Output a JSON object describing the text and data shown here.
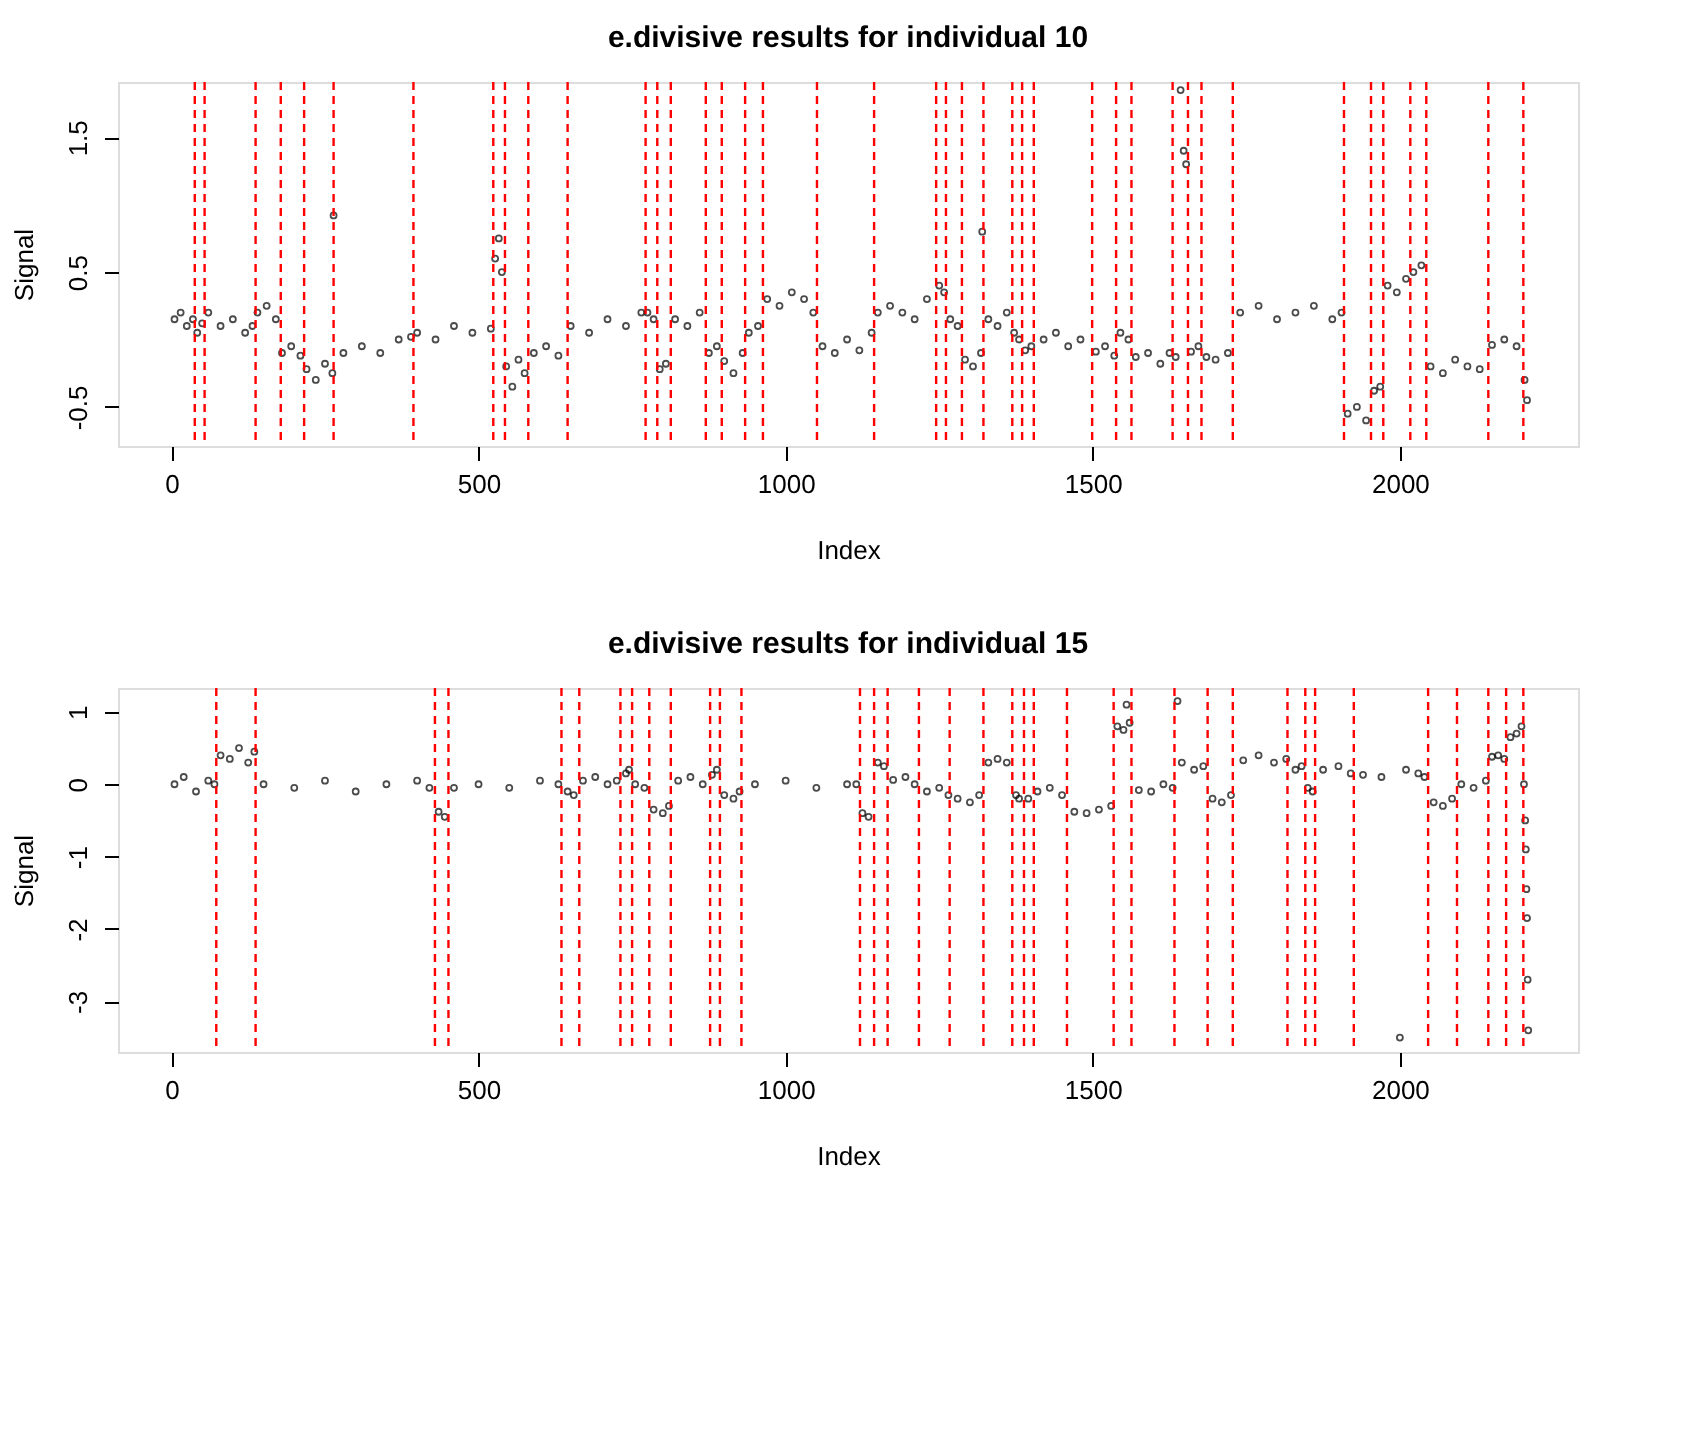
{
  "chart_data": [
    {
      "type": "scatter",
      "title": "e.divisive results for individual 10",
      "xlabel": "Index",
      "ylabel": "Signal",
      "marker": "circle",
      "grid": false,
      "xlim": [
        -87,
        2290
      ],
      "xticks": [
        0,
        500,
        1000,
        1500,
        2000
      ],
      "ylim": [
        -0.79,
        1.91
      ],
      "yticks": [
        -0.5,
        0.5,
        1.5
      ],
      "series": [
        {
          "color": "#000000",
          "x": [
            5,
            15,
            25,
            35,
            42,
            50,
            60,
            80,
            100,
            120,
            132,
            140,
            155,
            170,
            180,
            195,
            210,
            220,
            235,
            250,
            262,
            264,
            280,
            310,
            340,
            370,
            390,
            400,
            430,
            460,
            490,
            520,
            527,
            533,
            538,
            545,
            555,
            565,
            575,
            590,
            610,
            630,
            650,
            680,
            710,
            740,
            765,
            775,
            785,
            795,
            805,
            820,
            840,
            860,
            875,
            888,
            900,
            915,
            930,
            940,
            955,
            970,
            990,
            1010,
            1030,
            1045,
            1060,
            1080,
            1100,
            1120,
            1140,
            1150,
            1170,
            1190,
            1210,
            1230,
            1250,
            1258,
            1268,
            1280,
            1292,
            1305,
            1318,
            1320,
            1330,
            1345,
            1360,
            1372,
            1380,
            1390,
            1400,
            1420,
            1440,
            1460,
            1480,
            1505,
            1520,
            1535,
            1545,
            1558,
            1570,
            1590,
            1610,
            1625,
            1635,
            1643,
            1648,
            1652,
            1660,
            1672,
            1685,
            1700,
            1720,
            1740,
            1770,
            1800,
            1830,
            1860,
            1890,
            1905,
            1915,
            1930,
            1945,
            1958,
            1968,
            1980,
            1995,
            2010,
            2022,
            2035,
            2050,
            2070,
            2090,
            2110,
            2130,
            2150,
            2170,
            2190,
            2203,
            2207
          ],
          "values": [
            0.15,
            0.2,
            0.1,
            0.15,
            0.05,
            0.12,
            0.2,
            0.1,
            0.15,
            0.05,
            0.1,
            0.2,
            0.25,
            0.15,
            -0.1,
            -0.05,
            -0.12,
            -0.22,
            -0.3,
            -0.18,
            -0.25,
            0.92,
            -0.1,
            -0.05,
            -0.1,
            0.0,
            0.02,
            0.05,
            0.0,
            0.1,
            0.05,
            0.08,
            0.6,
            0.75,
            0.5,
            -0.2,
            -0.35,
            -0.15,
            -0.25,
            -0.1,
            -0.05,
            -0.12,
            0.1,
            0.05,
            0.15,
            0.1,
            0.2,
            0.2,
            0.15,
            -0.22,
            -0.18,
            0.15,
            0.1,
            0.2,
            -0.1,
            -0.05,
            -0.16,
            -0.25,
            -0.1,
            0.05,
            0.1,
            0.3,
            0.25,
            0.35,
            0.3,
            0.2,
            -0.05,
            -0.1,
            0.0,
            -0.08,
            0.05,
            0.2,
            0.25,
            0.2,
            0.15,
            0.3,
            0.4,
            0.35,
            0.15,
            0.1,
            -0.15,
            -0.2,
            -0.1,
            0.8,
            0.15,
            0.1,
            0.2,
            0.05,
            0.0,
            -0.08,
            -0.05,
            0.0,
            0.05,
            -0.05,
            0.0,
            -0.09,
            -0.05,
            -0.12,
            0.05,
            0.0,
            -0.13,
            -0.1,
            -0.18,
            -0.1,
            -0.13,
            1.85,
            1.4,
            1.3,
            -0.09,
            -0.05,
            -0.13,
            -0.15,
            -0.1,
            0.2,
            0.25,
            0.15,
            0.2,
            0.25,
            0.15,
            0.2,
            -0.55,
            -0.5,
            -0.6,
            -0.38,
            -0.35,
            0.4,
            0.35,
            0.45,
            0.5,
            0.55,
            -0.2,
            -0.25,
            -0.15,
            -0.2,
            -0.22,
            -0.04,
            0.0,
            -0.05,
            -0.3,
            -0.45
          ]
        }
      ],
      "ref_lines": [
        {
          "axis": "x",
          "value": 38,
          "color": "#ff0000",
          "line_style": "dashed"
        },
        {
          "axis": "x",
          "value": 54,
          "color": "#ff0000",
          "line_style": "dashed"
        },
        {
          "axis": "x",
          "value": 137,
          "color": "#ff0000",
          "line_style": "dashed"
        },
        {
          "axis": "x",
          "value": 178,
          "color": "#ff0000",
          "line_style": "dashed"
        },
        {
          "axis": "x",
          "value": 216,
          "color": "#ff0000",
          "line_style": "dashed"
        },
        {
          "axis": "x",
          "value": 264,
          "color": "#ff0000",
          "line_style": "dashed"
        },
        {
          "axis": "x",
          "value": 394,
          "color": "#ff0000",
          "line_style": "dashed"
        },
        {
          "axis": "x",
          "value": 524,
          "color": "#ff0000",
          "line_style": "dashed"
        },
        {
          "axis": "x",
          "value": 543,
          "color": "#ff0000",
          "line_style": "dashed"
        },
        {
          "axis": "x",
          "value": 581,
          "color": "#ff0000",
          "line_style": "dashed"
        },
        {
          "axis": "x",
          "value": 645,
          "color": "#ff0000",
          "line_style": "dashed"
        },
        {
          "axis": "x",
          "value": 772,
          "color": "#ff0000",
          "line_style": "dashed"
        },
        {
          "axis": "x",
          "value": 791,
          "color": "#ff0000",
          "line_style": "dashed"
        },
        {
          "axis": "x",
          "value": 813,
          "color": "#ff0000",
          "line_style": "dashed"
        },
        {
          "axis": "x",
          "value": 870,
          "color": "#ff0000",
          "line_style": "dashed"
        },
        {
          "axis": "x",
          "value": 896,
          "color": "#ff0000",
          "line_style": "dashed"
        },
        {
          "axis": "x",
          "value": 934,
          "color": "#ff0000",
          "line_style": "dashed"
        },
        {
          "axis": "x",
          "value": 963,
          "color": "#ff0000",
          "line_style": "dashed"
        },
        {
          "axis": "x",
          "value": 1051,
          "color": "#ff0000",
          "line_style": "dashed"
        },
        {
          "axis": "x",
          "value": 1144,
          "color": "#ff0000",
          "line_style": "dashed"
        },
        {
          "axis": "x",
          "value": 1245,
          "color": "#ff0000",
          "line_style": "dashed"
        },
        {
          "axis": "x",
          "value": 1261,
          "color": "#ff0000",
          "line_style": "dashed"
        },
        {
          "axis": "x",
          "value": 1287,
          "color": "#ff0000",
          "line_style": "dashed"
        },
        {
          "axis": "x",
          "value": 1322,
          "color": "#ff0000",
          "line_style": "dashed"
        },
        {
          "axis": "x",
          "value": 1369,
          "color": "#ff0000",
          "line_style": "dashed"
        },
        {
          "axis": "x",
          "value": 1385,
          "color": "#ff0000",
          "line_style": "dashed"
        },
        {
          "axis": "x",
          "value": 1404,
          "color": "#ff0000",
          "line_style": "dashed"
        },
        {
          "axis": "x",
          "value": 1499,
          "color": "#ff0000",
          "line_style": "dashed"
        },
        {
          "axis": "x",
          "value": 1538,
          "color": "#ff0000",
          "line_style": "dashed"
        },
        {
          "axis": "x",
          "value": 1563,
          "color": "#ff0000",
          "line_style": "dashed"
        },
        {
          "axis": "x",
          "value": 1630,
          "color": "#ff0000",
          "line_style": "dashed"
        },
        {
          "axis": "x",
          "value": 1655,
          "color": "#ff0000",
          "line_style": "dashed"
        },
        {
          "axis": "x",
          "value": 1677,
          "color": "#ff0000",
          "line_style": "dashed"
        },
        {
          "axis": "x",
          "value": 1728,
          "color": "#ff0000",
          "line_style": "dashed"
        },
        {
          "axis": "x",
          "value": 1909,
          "color": "#ff0000",
          "line_style": "dashed"
        },
        {
          "axis": "x",
          "value": 1953,
          "color": "#ff0000",
          "line_style": "dashed"
        },
        {
          "axis": "x",
          "value": 1973,
          "color": "#ff0000",
          "line_style": "dashed"
        },
        {
          "axis": "x",
          "value": 2017,
          "color": "#ff0000",
          "line_style": "dashed"
        },
        {
          "axis": "x",
          "value": 2043,
          "color": "#ff0000",
          "line_style": "dashed"
        },
        {
          "axis": "x",
          "value": 2144,
          "color": "#ff0000",
          "line_style": "dashed"
        },
        {
          "axis": "x",
          "value": 2201,
          "color": "#ff0000",
          "line_style": "dashed"
        }
      ]
    },
    {
      "type": "scatter",
      "title": "e.divisive results for individual 15",
      "xlabel": "Index",
      "ylabel": "Signal",
      "marker": "circle",
      "grid": false,
      "xlim": [
        -87,
        2290
      ],
      "xticks": [
        0,
        500,
        1000,
        1500,
        2000
      ],
      "ylim": [
        -3.7,
        1.33
      ],
      "yticks": [
        -3,
        -2,
        -1,
        0,
        1
      ],
      "series": [
        {
          "color": "#000000",
          "x": [
            5,
            20,
            40,
            60,
            70,
            80,
            95,
            110,
            125,
            135,
            150,
            200,
            250,
            300,
            350,
            400,
            420,
            435,
            445,
            460,
            500,
            550,
            600,
            630,
            645,
            655,
            670,
            690,
            710,
            725,
            740,
            745,
            755,
            770,
            785,
            800,
            810,
            825,
            845,
            865,
            880,
            888,
            900,
            915,
            925,
            950,
            1000,
            1050,
            1100,
            1115,
            1125,
            1135,
            1150,
            1160,
            1175,
            1195,
            1210,
            1230,
            1250,
            1265,
            1280,
            1300,
            1315,
            1330,
            1345,
            1360,
            1375,
            1380,
            1395,
            1410,
            1430,
            1450,
            1470,
            1490,
            1510,
            1530,
            1540,
            1550,
            1555,
            1560,
            1575,
            1595,
            1615,
            1630,
            1638,
            1645,
            1665,
            1680,
            1695,
            1710,
            1725,
            1745,
            1770,
            1795,
            1815,
            1830,
            1840,
            1850,
            1858,
            1875,
            1900,
            1920,
            1940,
            1970,
            2000,
            2010,
            2030,
            2040,
            2055,
            2070,
            2085,
            2100,
            2120,
            2140,
            2150,
            2160,
            2170,
            2180,
            2190,
            2198,
            2202,
            2204,
            2205,
            2206,
            2207,
            2208,
            2209
          ],
          "values": [
            0.0,
            0.1,
            -0.1,
            0.05,
            0.0,
            0.4,
            0.35,
            0.5,
            0.3,
            0.45,
            0.0,
            -0.05,
            0.05,
            -0.1,
            0.0,
            0.05,
            -0.05,
            -0.38,
            -0.45,
            -0.05,
            0.0,
            -0.05,
            0.05,
            0.0,
            -0.1,
            -0.15,
            0.05,
            0.1,
            0.0,
            0.05,
            0.15,
            0.2,
            0.0,
            -0.05,
            -0.35,
            -0.4,
            -0.3,
            0.05,
            0.1,
            0.0,
            0.13,
            0.2,
            -0.15,
            -0.2,
            -0.1,
            0.0,
            0.05,
            -0.05,
            0.0,
            0.0,
            -0.4,
            -0.45,
            0.3,
            0.25,
            0.06,
            0.1,
            0.0,
            -0.1,
            -0.05,
            -0.15,
            -0.2,
            -0.25,
            -0.15,
            0.3,
            0.35,
            0.3,
            -0.15,
            -0.2,
            -0.2,
            -0.1,
            -0.05,
            -0.15,
            -0.38,
            -0.4,
            -0.35,
            -0.3,
            0.8,
            0.75,
            1.1,
            0.85,
            -0.08,
            -0.1,
            0.0,
            -0.05,
            1.15,
            0.3,
            0.2,
            0.25,
            -0.2,
            -0.25,
            -0.15,
            0.33,
            0.4,
            0.3,
            0.35,
            0.2,
            0.25,
            -0.05,
            -0.1,
            0.2,
            0.25,
            0.15,
            0.13,
            0.1,
            -3.5,
            0.2,
            0.15,
            0.1,
            -0.25,
            -0.3,
            -0.2,
            0.0,
            -0.05,
            0.05,
            0.38,
            0.4,
            0.35,
            0.65,
            0.7,
            0.8,
            0.0,
            -0.5,
            -0.9,
            -1.45,
            -1.85,
            -2.7,
            -3.4
          ]
        }
      ],
      "ref_lines": [
        {
          "axis": "x",
          "value": 73,
          "color": "#ff0000",
          "line_style": "dashed"
        },
        {
          "axis": "x",
          "value": 137,
          "color": "#ff0000",
          "line_style": "dashed"
        },
        {
          "axis": "x",
          "value": 429,
          "color": "#ff0000",
          "line_style": "dashed"
        },
        {
          "axis": "x",
          "value": 451,
          "color": "#ff0000",
          "line_style": "dashed"
        },
        {
          "axis": "x",
          "value": 635,
          "color": "#ff0000",
          "line_style": "dashed"
        },
        {
          "axis": "x",
          "value": 664,
          "color": "#ff0000",
          "line_style": "dashed"
        },
        {
          "axis": "x",
          "value": 731,
          "color": "#ff0000",
          "line_style": "dashed"
        },
        {
          "axis": "x",
          "value": 750,
          "color": "#ff0000",
          "line_style": "dashed"
        },
        {
          "axis": "x",
          "value": 778,
          "color": "#ff0000",
          "line_style": "dashed"
        },
        {
          "axis": "x",
          "value": 813,
          "color": "#ff0000",
          "line_style": "dashed"
        },
        {
          "axis": "x",
          "value": 877,
          "color": "#ff0000",
          "line_style": "dashed"
        },
        {
          "axis": "x",
          "value": 893,
          "color": "#ff0000",
          "line_style": "dashed"
        },
        {
          "axis": "x",
          "value": 928,
          "color": "#ff0000",
          "line_style": "dashed"
        },
        {
          "axis": "x",
          "value": 1121,
          "color": "#ff0000",
          "line_style": "dashed"
        },
        {
          "axis": "x",
          "value": 1144,
          "color": "#ff0000",
          "line_style": "dashed"
        },
        {
          "axis": "x",
          "value": 1166,
          "color": "#ff0000",
          "line_style": "dashed"
        },
        {
          "axis": "x",
          "value": 1217,
          "color": "#ff0000",
          "line_style": "dashed"
        },
        {
          "axis": "x",
          "value": 1267,
          "color": "#ff0000",
          "line_style": "dashed"
        },
        {
          "axis": "x",
          "value": 1322,
          "color": "#ff0000",
          "line_style": "dashed"
        },
        {
          "axis": "x",
          "value": 1369,
          "color": "#ff0000",
          "line_style": "dashed"
        },
        {
          "axis": "x",
          "value": 1388,
          "color": "#ff0000",
          "line_style": "dashed"
        },
        {
          "axis": "x",
          "value": 1404,
          "color": "#ff0000",
          "line_style": "dashed"
        },
        {
          "axis": "x",
          "value": 1458,
          "color": "#ff0000",
          "line_style": "dashed"
        },
        {
          "axis": "x",
          "value": 1534,
          "color": "#ff0000",
          "line_style": "dashed"
        },
        {
          "axis": "x",
          "value": 1563,
          "color": "#ff0000",
          "line_style": "dashed"
        },
        {
          "axis": "x",
          "value": 1633,
          "color": "#ff0000",
          "line_style": "dashed"
        },
        {
          "axis": "x",
          "value": 1687,
          "color": "#ff0000",
          "line_style": "dashed"
        },
        {
          "axis": "x",
          "value": 1728,
          "color": "#ff0000",
          "line_style": "dashed"
        },
        {
          "axis": "x",
          "value": 1817,
          "color": "#ff0000",
          "line_style": "dashed"
        },
        {
          "axis": "x",
          "value": 1846,
          "color": "#ff0000",
          "line_style": "dashed"
        },
        {
          "axis": "x",
          "value": 1862,
          "color": "#ff0000",
          "line_style": "dashed"
        },
        {
          "axis": "x",
          "value": 1925,
          "color": "#ff0000",
          "line_style": "dashed"
        },
        {
          "axis": "x",
          "value": 2046,
          "color": "#ff0000",
          "line_style": "dashed"
        },
        {
          "axis": "x",
          "value": 2093,
          "color": "#ff0000",
          "line_style": "dashed"
        },
        {
          "axis": "x",
          "value": 2144,
          "color": "#ff0000",
          "line_style": "dashed"
        },
        {
          "axis": "x",
          "value": 2173,
          "color": "#ff0000",
          "line_style": "dashed"
        },
        {
          "axis": "x",
          "value": 2201,
          "color": "#ff0000",
          "line_style": "dashed"
        }
      ]
    }
  ]
}
